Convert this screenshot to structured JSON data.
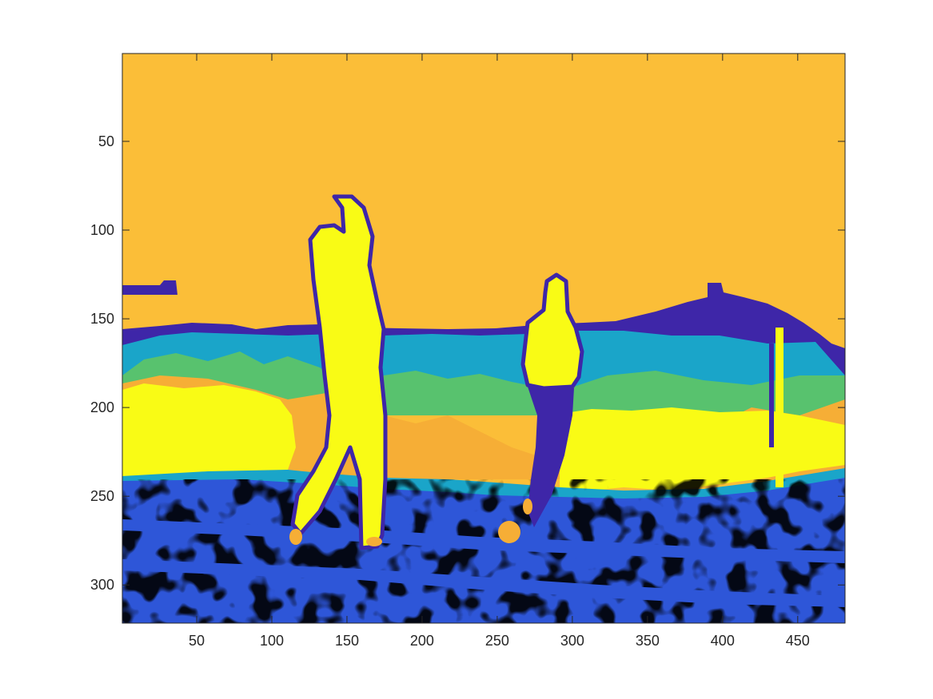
{
  "chart_data": {
    "type": "heatmap",
    "title": "",
    "xlabel": "",
    "ylabel": "",
    "xlim": [
      0.5,
      481.5
    ],
    "ylim": [
      0.5,
      321.5
    ],
    "y_reversed": true,
    "grid": false,
    "colorbar": false,
    "x_ticks": [
      50,
      100,
      150,
      200,
      250,
      300,
      350,
      400,
      450
    ],
    "y_ticks": [
      50,
      100,
      150,
      200,
      250,
      300
    ],
    "x_tick_labels": [
      "50",
      "100",
      "150",
      "200",
      "250",
      "300",
      "350",
      "400",
      "450"
    ],
    "y_tick_labels": [
      "50",
      "100",
      "150",
      "200",
      "250",
      "300"
    ],
    "levels": 6,
    "colors": {
      "level_1": "#3e26a8",
      "level_2": "#2e56d8",
      "level_3": "#1aa5c9",
      "level_4": "#58c26e",
      "level_5": "#f6ae36",
      "level_6": "#f9fb15",
      "sky": "#fbbe38"
    },
    "description_regions": [
      {
        "name": "sky",
        "level": "sky",
        "y_range": [
          1,
          150
        ]
      },
      {
        "name": "treeline",
        "level": "level_3",
        "y_range": [
          150,
          200
        ]
      },
      {
        "name": "bright-band",
        "level": "level_6",
        "y_range": [
          195,
          240
        ]
      },
      {
        "name": "ground",
        "level": "level_2",
        "y_range": [
          240,
          321
        ]
      },
      {
        "name": "person-left",
        "level": "level_6",
        "x_range": [
          115,
          175
        ],
        "y_range": [
          82,
          282
        ]
      },
      {
        "name": "person-right",
        "level": "level_6",
        "x_range": [
          265,
          305
        ],
        "y_range": [
          125,
          270
        ]
      }
    ]
  }
}
